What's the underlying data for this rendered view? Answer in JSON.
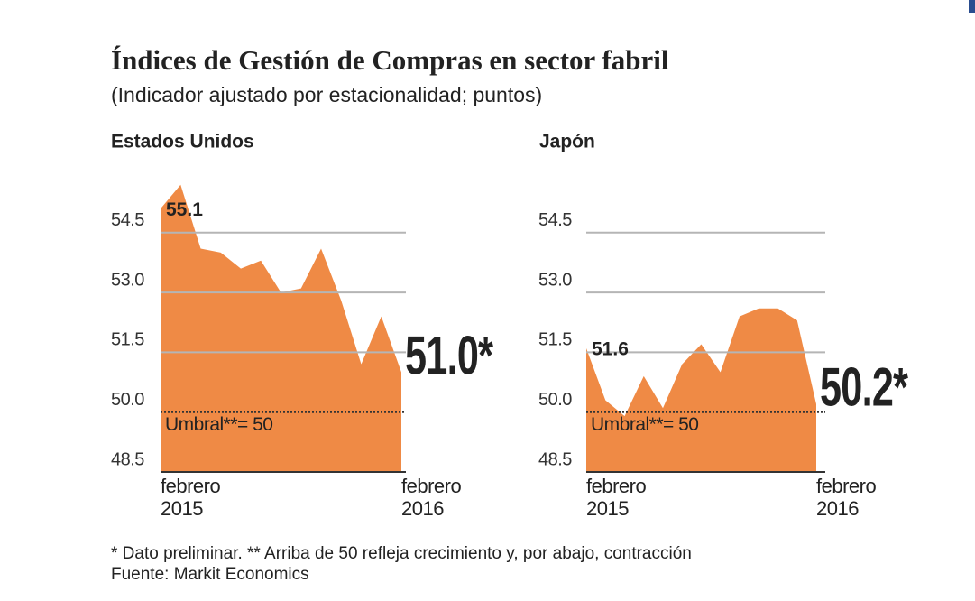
{
  "header": {
    "title": "Índices de Gestión de Compras en sector fabril",
    "subtitle": "(Indicador ajustado por estacionalidad;  puntos)"
  },
  "chart_data": [
    {
      "type": "area",
      "title": "Estados Unidos",
      "color": "#ef8a45",
      "categories": [
        "febrero 2015",
        null,
        null,
        null,
        null,
        null,
        null,
        null,
        null,
        null,
        null,
        null,
        "febrero 2016"
      ],
      "values": [
        55.1,
        55.7,
        54.1,
        54.0,
        53.6,
        53.8,
        53.0,
        53.1,
        54.1,
        52.8,
        51.2,
        52.4,
        51.0
      ],
      "value_labels": [
        "55.1",
        null,
        null,
        null,
        null,
        null,
        null,
        null,
        null,
        null,
        null,
        null,
        "51.0*"
      ],
      "ylim": [
        48.5,
        56
      ],
      "yticks": [
        48.5,
        {
          "value": 50,
          "label": "50.0"
        },
        51.5,
        {
          "value": 53,
          "label": "53.0"
        },
        54.5
      ],
      "threshold": 50,
      "threshold_label": "Umbral**= 50",
      "grid": true
    },
    {
      "type": "area",
      "title": "Japón",
      "color": "#ef8a45",
      "categories": [
        "febrero 2015",
        null,
        null,
        null,
        null,
        null,
        null,
        null,
        null,
        null,
        null,
        null,
        "febrero 2016"
      ],
      "values": [
        51.6,
        50.3,
        49.9,
        50.9,
        50.1,
        51.2,
        51.7,
        51.0,
        52.4,
        52.6,
        52.6,
        52.3,
        50.2
      ],
      "value_labels": [
        "51.6",
        null,
        null,
        null,
        null,
        null,
        null,
        null,
        null,
        null,
        null,
        null,
        "50.2*"
      ],
      "ylim": [
        48.5,
        56
      ],
      "yticks": [
        48.5,
        {
          "value": 50,
          "label": "50.0"
        },
        51.5,
        {
          "value": 53,
          "label": "53.0"
        },
        54.5
      ],
      "threshold": 50,
      "threshold_label": "Umbral**= 50",
      "grid": true
    }
  ],
  "footer": {
    "note": "* Dato preliminar. ** Arriba de 50 refleja crecimiento y, por abajo, contracción",
    "source": "Fuente: Markit Economics"
  }
}
